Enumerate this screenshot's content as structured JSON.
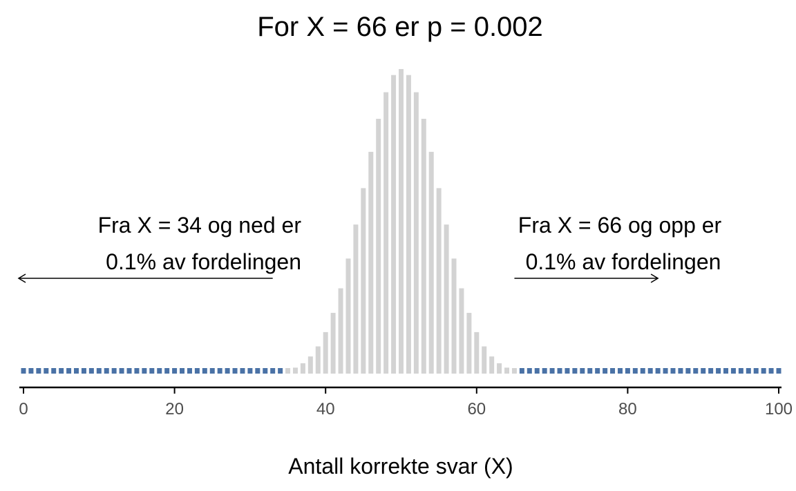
{
  "chart_data": {
    "type": "bar",
    "title": "For X = 66 er p = 0.002",
    "xlabel": "Antall korrekte svar (X)",
    "ylabel": "",
    "xlim": [
      0,
      100
    ],
    "x_ticks": [
      0,
      20,
      40,
      60,
      80,
      100
    ],
    "distribution": {
      "kind": "binomial",
      "n": 100,
      "p": 0.5
    },
    "highlight": {
      "lower_max": 34,
      "upper_min": 66
    },
    "colors": {
      "tail": "#4a72a6",
      "center": "#d3d3d3"
    },
    "annotations": {
      "left_line1": "Fra X = 34 og ned er",
      "left_line2": "0.1% av fordelingen",
      "right_line1": "Fra X = 66 og opp er",
      "right_line2": "0.1% av fordelingen"
    },
    "arrows": [
      {
        "from_x": 33,
        "to_x": 0
      },
      {
        "from_x": 65,
        "to_x": 84
      }
    ],
    "legend": "none",
    "grid": false
  }
}
